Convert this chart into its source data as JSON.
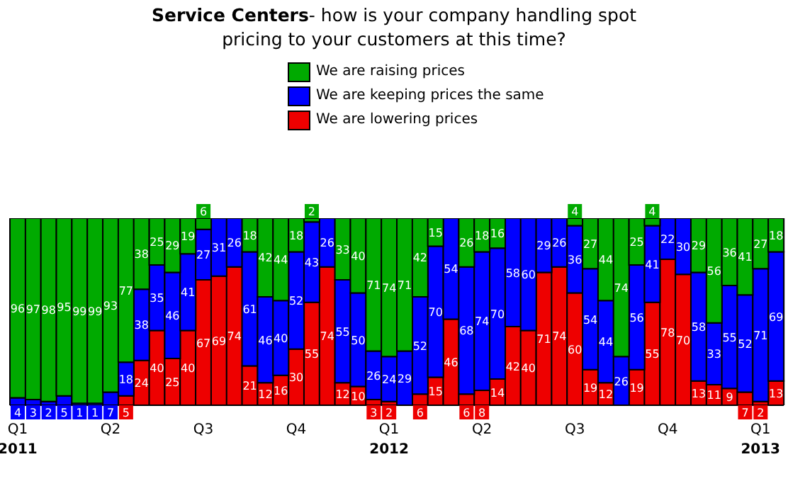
{
  "chart_data": {
    "type": "bar",
    "stacked": true,
    "title": "Service Centers- how is your company handling spot pricing to your customers at this time?",
    "categories": [
      "Q1\n2011",
      null,
      null,
      null,
      null,
      null,
      "Q2",
      null,
      null,
      null,
      null,
      null,
      "Q3",
      null,
      null,
      null,
      null,
      null,
      "Q4",
      null,
      null,
      null,
      null,
      null,
      "Q1\n2012",
      null,
      null,
      null,
      null,
      null,
      "Q2",
      null,
      null,
      null,
      null,
      null,
      "Q3",
      null,
      null,
      null,
      null,
      null,
      "Q4",
      null,
      null,
      null,
      null,
      null,
      "Q1\n2013",
      null
    ],
    "series": [
      {
        "name": "We are lowering prices",
        "color": "#ee0000",
        "values": [
          null,
          null,
          null,
          null,
          null,
          null,
          null,
          5,
          24,
          40,
          25,
          40,
          67,
          69,
          74,
          21,
          12,
          16,
          30,
          55,
          74,
          12,
          10,
          3,
          2,
          null,
          6,
          15,
          46,
          6,
          8,
          14,
          42,
          40,
          71,
          74,
          60,
          19,
          12,
          null,
          19,
          55,
          78,
          70,
          13,
          11,
          9,
          7,
          2,
          13
        ]
      },
      {
        "name": "We are keeping prices the same",
        "color": "#0000ff",
        "values": [
          4,
          3,
          2,
          5,
          1,
          1,
          7,
          18,
          38,
          35,
          46,
          41,
          27,
          31,
          26,
          61,
          46,
          40,
          52,
          43,
          26,
          55,
          50,
          26,
          24,
          29,
          52,
          70,
          54,
          68,
          74,
          70,
          58,
          60,
          29,
          26,
          36,
          54,
          44,
          26,
          56,
          41,
          22,
          30,
          58,
          33,
          55,
          52,
          71,
          69
        ]
      },
      {
        "name": "We are raising prices",
        "color": "#00aa00",
        "values": [
          96,
          97,
          98,
          95,
          99,
          99,
          93,
          77,
          38,
          25,
          29,
          19,
          6,
          null,
          null,
          18,
          42,
          44,
          18,
          2,
          null,
          33,
          40,
          71,
          74,
          71,
          42,
          15,
          null,
          26,
          18,
          16,
          null,
          null,
          null,
          null,
          4,
          27,
          44,
          74,
          25,
          4,
          null,
          null,
          29,
          56,
          36,
          41,
          27,
          18
        ]
      }
    ],
    "ylim": [
      0,
      100
    ],
    "data_labels": true,
    "legend": "top",
    "grid": false
  }
}
